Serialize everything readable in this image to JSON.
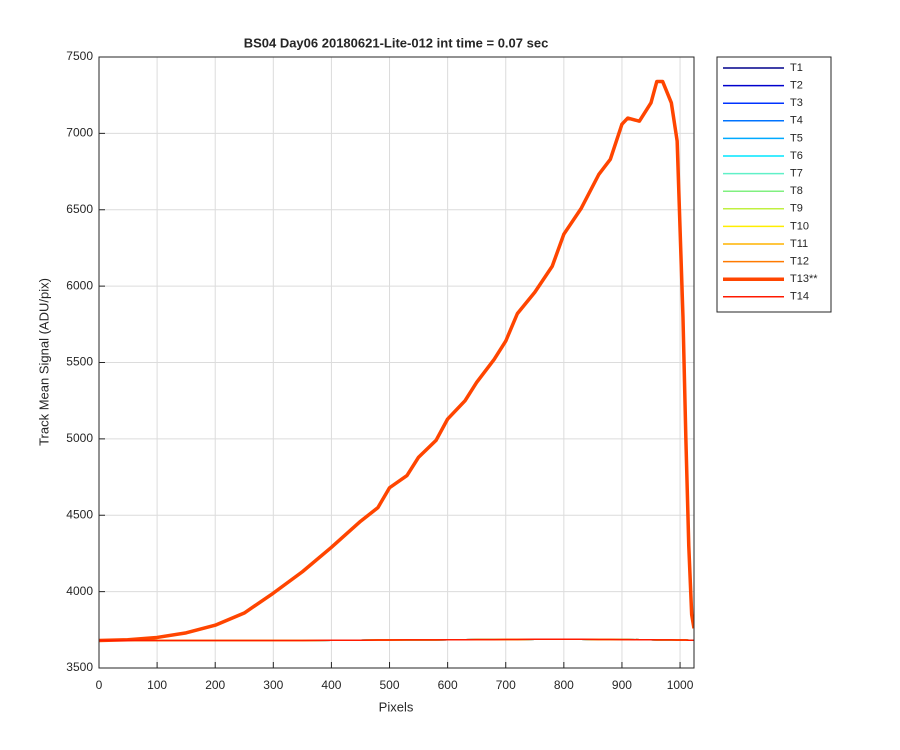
{
  "chart_data": {
    "type": "line",
    "title": "BS04 Day06 20180621-Lite-012 int time = 0.07 sec",
    "x_label": "Pixels",
    "y_label": "Track Mean Signal (ADU/pix)",
    "xlim": [
      0,
      1024
    ],
    "ylim": [
      3500,
      7500
    ],
    "xticks": [
      0,
      100,
      200,
      300,
      400,
      500,
      600,
      700,
      800,
      900,
      1000
    ],
    "yticks": [
      3500,
      4000,
      4500,
      5000,
      5500,
      6000,
      6500,
      7000,
      7500
    ],
    "grid": true,
    "legend_position": "outside-northeast",
    "x": [
      0,
      50,
      100,
      150,
      200,
      250,
      300,
      350,
      400,
      450,
      480,
      500,
      530,
      550,
      580,
      600,
      630,
      650,
      680,
      700,
      720,
      750,
      780,
      800,
      830,
      860,
      880,
      900,
      910,
      930,
      950,
      960,
      970,
      985,
      995,
      1005,
      1010,
      1015,
      1020,
      1024
    ],
    "series": [
      {
        "name": "T1",
        "color": "#00008b",
        "linewidth": 1.5,
        "values": [
          3680,
          3680,
          3680,
          3680,
          3680,
          3680,
          3680,
          3680,
          3682,
          3682,
          3683,
          3683,
          3684,
          3684,
          3684,
          3685,
          3685,
          3686,
          3686,
          3687,
          3687,
          3688,
          3688,
          3688,
          3688,
          3687,
          3687,
          3686,
          3686,
          3685,
          3685,
          3684,
          3684,
          3684,
          3683,
          3683,
          3683,
          3682,
          3682,
          3682
        ]
      },
      {
        "name": "T2",
        "color": "#0000cd",
        "linewidth": 1.5,
        "values": [
          3680,
          3680,
          3680,
          3680,
          3680,
          3680,
          3680,
          3680,
          3682,
          3682,
          3683,
          3683,
          3684,
          3684,
          3684,
          3685,
          3685,
          3686,
          3686,
          3687,
          3687,
          3688,
          3688,
          3688,
          3688,
          3687,
          3687,
          3686,
          3686,
          3685,
          3685,
          3684,
          3684,
          3684,
          3683,
          3683,
          3683,
          3682,
          3682,
          3682
        ]
      },
      {
        "name": "T3",
        "color": "#0033ff",
        "linewidth": 1.5,
        "values": [
          3680,
          3680,
          3680,
          3680,
          3680,
          3680,
          3680,
          3680,
          3682,
          3682,
          3683,
          3683,
          3684,
          3684,
          3684,
          3685,
          3685,
          3686,
          3686,
          3687,
          3687,
          3688,
          3688,
          3688,
          3688,
          3687,
          3687,
          3686,
          3686,
          3685,
          3685,
          3684,
          3684,
          3684,
          3683,
          3683,
          3683,
          3682,
          3682,
          3682
        ]
      },
      {
        "name": "T4",
        "color": "#0073ff",
        "linewidth": 1.5,
        "values": [
          3680,
          3680,
          3680,
          3680,
          3680,
          3680,
          3680,
          3680,
          3682,
          3682,
          3683,
          3683,
          3684,
          3684,
          3684,
          3685,
          3685,
          3686,
          3686,
          3687,
          3687,
          3688,
          3688,
          3688,
          3688,
          3687,
          3687,
          3686,
          3686,
          3685,
          3685,
          3684,
          3684,
          3684,
          3683,
          3683,
          3683,
          3682,
          3682,
          3682
        ]
      },
      {
        "name": "T5",
        "color": "#00aaff",
        "linewidth": 1.5,
        "values": [
          3680,
          3680,
          3680,
          3680,
          3680,
          3680,
          3680,
          3680,
          3682,
          3682,
          3683,
          3683,
          3684,
          3684,
          3684,
          3685,
          3685,
          3686,
          3686,
          3687,
          3687,
          3688,
          3688,
          3688,
          3688,
          3687,
          3687,
          3686,
          3686,
          3685,
          3685,
          3684,
          3684,
          3684,
          3683,
          3683,
          3683,
          3682,
          3682,
          3682
        ]
      },
      {
        "name": "T6",
        "color": "#00e5ff",
        "linewidth": 1.5,
        "values": [
          3680,
          3680,
          3680,
          3680,
          3680,
          3680,
          3680,
          3680,
          3682,
          3682,
          3683,
          3683,
          3684,
          3684,
          3684,
          3685,
          3685,
          3686,
          3686,
          3687,
          3687,
          3688,
          3688,
          3688,
          3688,
          3687,
          3687,
          3686,
          3686,
          3685,
          3685,
          3684,
          3684,
          3684,
          3683,
          3683,
          3683,
          3682,
          3682,
          3682
        ]
      },
      {
        "name": "T7",
        "color": "#60f0c8",
        "linewidth": 1.5,
        "values": [
          3680,
          3680,
          3680,
          3680,
          3680,
          3680,
          3680,
          3680,
          3682,
          3682,
          3683,
          3683,
          3684,
          3684,
          3684,
          3685,
          3685,
          3686,
          3686,
          3687,
          3687,
          3688,
          3688,
          3688,
          3688,
          3687,
          3687,
          3686,
          3686,
          3685,
          3685,
          3684,
          3684,
          3684,
          3683,
          3683,
          3683,
          3682,
          3682,
          3682
        ]
      },
      {
        "name": "T8",
        "color": "#80f080",
        "linewidth": 1.5,
        "values": [
          3680,
          3680,
          3680,
          3680,
          3680,
          3680,
          3680,
          3680,
          3682,
          3682,
          3683,
          3683,
          3684,
          3684,
          3684,
          3685,
          3685,
          3686,
          3686,
          3687,
          3687,
          3688,
          3688,
          3688,
          3688,
          3687,
          3687,
          3686,
          3686,
          3685,
          3685,
          3684,
          3684,
          3684,
          3683,
          3683,
          3683,
          3682,
          3682,
          3682
        ]
      },
      {
        "name": "T9",
        "color": "#c0f040",
        "linewidth": 1.5,
        "values": [
          3680,
          3680,
          3680,
          3680,
          3680,
          3680,
          3680,
          3680,
          3682,
          3682,
          3683,
          3683,
          3684,
          3684,
          3684,
          3685,
          3685,
          3686,
          3686,
          3687,
          3687,
          3688,
          3688,
          3688,
          3688,
          3687,
          3687,
          3686,
          3686,
          3685,
          3685,
          3684,
          3684,
          3684,
          3683,
          3683,
          3683,
          3682,
          3682,
          3682
        ]
      },
      {
        "name": "T10",
        "color": "#ffee00",
        "linewidth": 1.5,
        "values": [
          3680,
          3680,
          3680,
          3680,
          3680,
          3680,
          3680,
          3680,
          3682,
          3682,
          3683,
          3683,
          3684,
          3684,
          3684,
          3685,
          3685,
          3686,
          3686,
          3687,
          3687,
          3688,
          3688,
          3688,
          3688,
          3687,
          3687,
          3686,
          3686,
          3685,
          3685,
          3684,
          3684,
          3684,
          3683,
          3683,
          3683,
          3682,
          3682,
          3682
        ]
      },
      {
        "name": "T11",
        "color": "#ffb400",
        "linewidth": 1.5,
        "values": [
          3680,
          3680,
          3680,
          3680,
          3680,
          3680,
          3680,
          3680,
          3682,
          3682,
          3683,
          3683,
          3684,
          3684,
          3684,
          3685,
          3685,
          3686,
          3686,
          3687,
          3687,
          3688,
          3688,
          3688,
          3688,
          3687,
          3687,
          3686,
          3686,
          3685,
          3685,
          3684,
          3684,
          3684,
          3683,
          3683,
          3683,
          3682,
          3682,
          3682
        ]
      },
      {
        "name": "T12",
        "color": "#ff7a00",
        "linewidth": 1.5,
        "values": [
          3680,
          3680,
          3680,
          3680,
          3680,
          3680,
          3680,
          3680,
          3682,
          3682,
          3683,
          3683,
          3684,
          3684,
          3684,
          3685,
          3685,
          3686,
          3686,
          3687,
          3687,
          3688,
          3688,
          3688,
          3688,
          3687,
          3687,
          3686,
          3686,
          3685,
          3685,
          3684,
          3684,
          3684,
          3683,
          3683,
          3683,
          3682,
          3682,
          3682
        ]
      },
      {
        "name": "T13**",
        "color": "#ff4500",
        "linewidth": 3.5,
        "values": [
          3680,
          3685,
          3700,
          3730,
          3780,
          3860,
          3990,
          4130,
          4290,
          4460,
          4550,
          4680,
          4760,
          4880,
          4990,
          5130,
          5250,
          5370,
          5520,
          5640,
          5820,
          5960,
          6130,
          6340,
          6510,
          6730,
          6830,
          7060,
          7100,
          7080,
          7200,
          7340,
          7340,
          7200,
          6950,
          5800,
          5000,
          4300,
          3850,
          3760
        ]
      },
      {
        "name": "T14",
        "color": "#ff1a00",
        "linewidth": 1.5,
        "values": [
          3680,
          3680,
          3680,
          3680,
          3680,
          3680,
          3680,
          3680,
          3682,
          3682,
          3683,
          3683,
          3684,
          3684,
          3684,
          3685,
          3685,
          3686,
          3686,
          3687,
          3687,
          3688,
          3688,
          3688,
          3688,
          3687,
          3687,
          3686,
          3686,
          3685,
          3685,
          3684,
          3684,
          3684,
          3683,
          3683,
          3683,
          3682,
          3682,
          3682
        ]
      }
    ]
  }
}
